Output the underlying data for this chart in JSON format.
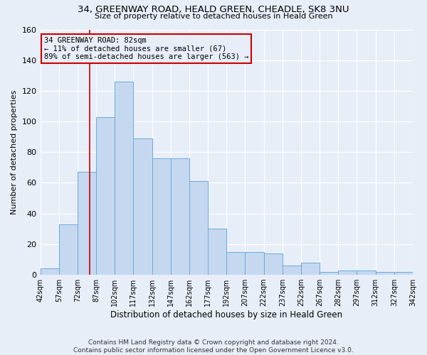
{
  "title1": "34, GREENWAY ROAD, HEALD GREEN, CHEADLE, SK8 3NU",
  "title2": "Size of property relative to detached houses in Heald Green",
  "xlabel": "Distribution of detached houses by size in Heald Green",
  "ylabel": "Number of detached properties",
  "bar_values": [
    4,
    33,
    67,
    103,
    126,
    89,
    76,
    76,
    61,
    30,
    15,
    15,
    14,
    6,
    8,
    2,
    3,
    3,
    2,
    2
  ],
  "bin_edges": [
    42,
    57,
    72,
    87,
    102,
    117,
    132,
    147,
    162,
    177,
    192,
    207,
    222,
    237,
    252,
    267,
    282,
    297,
    312,
    327,
    342
  ],
  "bar_color": "#c5d8f0",
  "bar_edgecolor": "#6aabdc",
  "ylim": [
    0,
    160
  ],
  "yticks": [
    0,
    20,
    40,
    60,
    80,
    100,
    120,
    140,
    160
  ],
  "property_size": 82,
  "annotation_line1": "34 GREENWAY ROAD: 82sqm",
  "annotation_line2": "← 11% of detached houses are smaller (67)",
  "annotation_line3": "89% of semi-detached houses are larger (563) →",
  "vline_color": "#cc0000",
  "annotation_box_edgecolor": "#cc0000",
  "footer_text": "Contains HM Land Registry data © Crown copyright and database right 2024.\nContains public sector information licensed under the Open Government Licence v3.0.",
  "background_color": "#e8eef8",
  "grid_color": "#ffffff"
}
